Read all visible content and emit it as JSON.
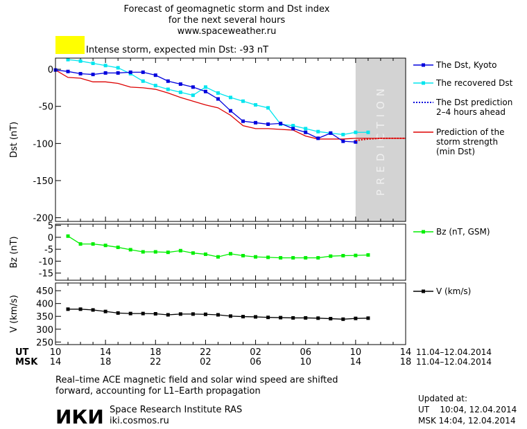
{
  "header": {
    "title_lines": [
      "Forecast of geomagnetic storm and Dst index",
      "for the next several hours",
      "www.spaceweather.ru"
    ],
    "alert_color": "#ffff00",
    "alert_text": "Intense storm, expected min Dst: -93 nT"
  },
  "colors": {
    "dst_kyoto": "#0000dd",
    "dst_recovered": "#00e5ee",
    "prediction": "#dd0000",
    "bz": "#00ee00",
    "v": "#000000",
    "prediction_band": "#d3d3d3"
  },
  "chart_data": [
    {
      "type": "line",
      "ylabel": "Dst (nT)",
      "ylim": [
        -205,
        15
      ],
      "yticks": [
        0,
        -50,
        -100,
        -150,
        -200
      ],
      "xlim": [
        0,
        28
      ],
      "prediction_band": {
        "x_start": 24,
        "x_end": 28,
        "label": "PREDICTION"
      },
      "legend": {
        "placement": "right"
      },
      "series": [
        {
          "name": "The Dst, Kyoto",
          "x": [
            0,
            1,
            2,
            3,
            4,
            5,
            6,
            7,
            8,
            9,
            10,
            11,
            12,
            13,
            14,
            15,
            16,
            17,
            18,
            19,
            20,
            21,
            22,
            23,
            24
          ],
          "y": [
            -1,
            -3,
            -6,
            -7,
            -5,
            -5,
            -4,
            -4,
            -8,
            -16,
            -20,
            -24,
            -30,
            -40,
            -56,
            -70,
            -72,
            -74,
            -73,
            -80,
            -85,
            -93,
            -86,
            -97,
            -98
          ]
        },
        {
          "name": "The recovered Dst",
          "x": [
            1,
            2,
            3,
            4,
            5,
            6,
            7,
            8,
            9,
            10,
            11,
            12,
            13,
            14,
            15,
            16,
            17,
            18,
            19,
            20,
            21,
            22,
            23,
            24,
            25
          ],
          "y": [
            13,
            11,
            8,
            5,
            2,
            -6,
            -16,
            -22,
            -27,
            -31,
            -35,
            -24,
            -32,
            -38,
            -43,
            -48,
            -52,
            -74,
            -76,
            -80,
            -84,
            -86,
            -88,
            -85,
            -85
          ]
        },
        {
          "name": "The Dst prediction",
          "name_line2": "2–4 hours ahead",
          "x": [
            24,
            25,
            26,
            27,
            28
          ],
          "y": [
            -96,
            -94,
            -93,
            -93,
            -93
          ]
        },
        {
          "name": "Prediction of the",
          "name_line2": "storm strength",
          "name_line3": "(min Dst)",
          "x": [
            0,
            1,
            2,
            3,
            4,
            5,
            6,
            7,
            8,
            9,
            10,
            11,
            12,
            13,
            14,
            15,
            16,
            17,
            18,
            19,
            20,
            21,
            22,
            23,
            24,
            25,
            26,
            27,
            28
          ],
          "y": [
            -1,
            -11,
            -12,
            -17,
            -17,
            -19,
            -24,
            -25,
            -27,
            -32,
            -38,
            -43,
            -48,
            -52,
            -62,
            -76,
            -80,
            -80,
            -81,
            -82,
            -90,
            -94,
            -94,
            -94,
            -93,
            -93,
            -93,
            -93,
            -93
          ]
        }
      ]
    },
    {
      "type": "line",
      "ylabel": "Bz (nT)",
      "ylim": [
        -18,
        5.5
      ],
      "yticks": [
        5,
        0,
        -5,
        -10,
        -15
      ],
      "series": [
        {
          "name": "Bz (nT, GSM)",
          "x": [
            1,
            2,
            3,
            4,
            5,
            6,
            7,
            8,
            9,
            10,
            11,
            12,
            13,
            14,
            15,
            16,
            17,
            18,
            19,
            20,
            21,
            22,
            23,
            24,
            25
          ],
          "y": [
            0.5,
            -2.8,
            -2.8,
            -3.4,
            -4.2,
            -5.2,
            -6.1,
            -6.1,
            -6.3,
            -5.6,
            -6.6,
            -7.1,
            -8.2,
            -6.9,
            -7.7,
            -8.2,
            -8.4,
            -8.6,
            -8.6,
            -8.6,
            -8.6,
            -7.9,
            -7.7,
            -7.6,
            -7.4
          ]
        }
      ]
    },
    {
      "type": "line",
      "ylabel": "V (km/s)",
      "ylim": [
        240,
        480
      ],
      "yticks": [
        450,
        400,
        350,
        300,
        250
      ],
      "series": [
        {
          "name": "V (km/s)",
          "x": [
            1,
            2,
            3,
            4,
            5,
            6,
            7,
            8,
            9,
            10,
            11,
            12,
            13,
            14,
            15,
            16,
            17,
            18,
            19,
            20,
            21,
            22,
            23,
            24,
            25
          ],
          "y": [
            378,
            378,
            375,
            369,
            363,
            361,
            361,
            360,
            356,
            359,
            359,
            358,
            356,
            351,
            349,
            348,
            346,
            345,
            344,
            344,
            343,
            341,
            339,
            342,
            343
          ]
        }
      ]
    }
  ],
  "xaxis": {
    "ut_label": "UT",
    "msk_label": "MSK",
    "ut_ticks": [
      "10",
      "14",
      "18",
      "22",
      "02",
      "06",
      "10",
      "14"
    ],
    "msk_ticks": [
      "14",
      "18",
      "22",
      "02",
      "06",
      "10",
      "14",
      "18"
    ],
    "ut_range": "11.04–12.04.2014",
    "msk_range": "11.04–12.04.2014"
  },
  "footer": {
    "note_line1": "Real–time ACE magnetic field and solar wind speed are shifted",
    "note_line2": "forward, accounting for L1–Earth propagation",
    "logo_text": "ИКИ",
    "institute": "Space Research Institute RAS",
    "site": "iki.cosmos.ru",
    "updated_label": "Updated at:",
    "updated_ut": "UT    10:04, 12.04.2014",
    "updated_msk": "MSK 14:04, 12.04.2014"
  }
}
